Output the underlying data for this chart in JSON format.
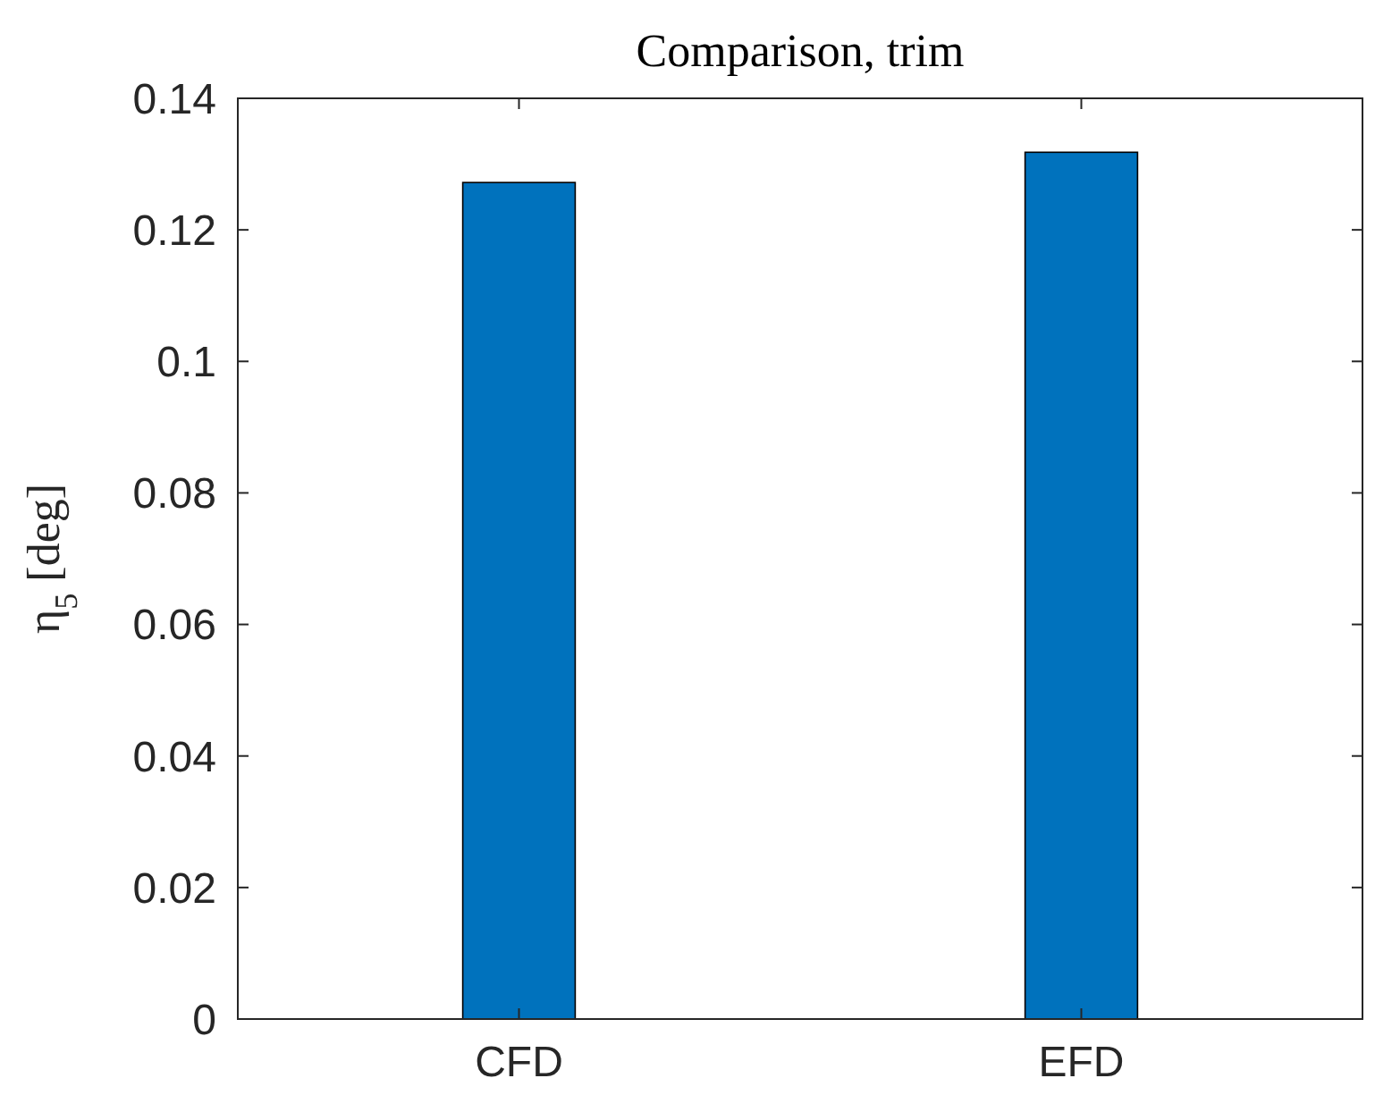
{
  "chart_data": {
    "type": "bar",
    "title": "Comparison, trim",
    "ylabel": "η$_{5}$ [deg]",
    "categories": [
      "CFD",
      "EFD"
    ],
    "values": [
      0.1272,
      0.1318
    ],
    "color": "#0072bd",
    "ylim": [
      0,
      0.14
    ],
    "yticks": [
      0,
      0.02,
      0.04,
      0.06,
      0.08,
      0.1,
      0.12,
      0.14
    ],
    "grid": false
  }
}
